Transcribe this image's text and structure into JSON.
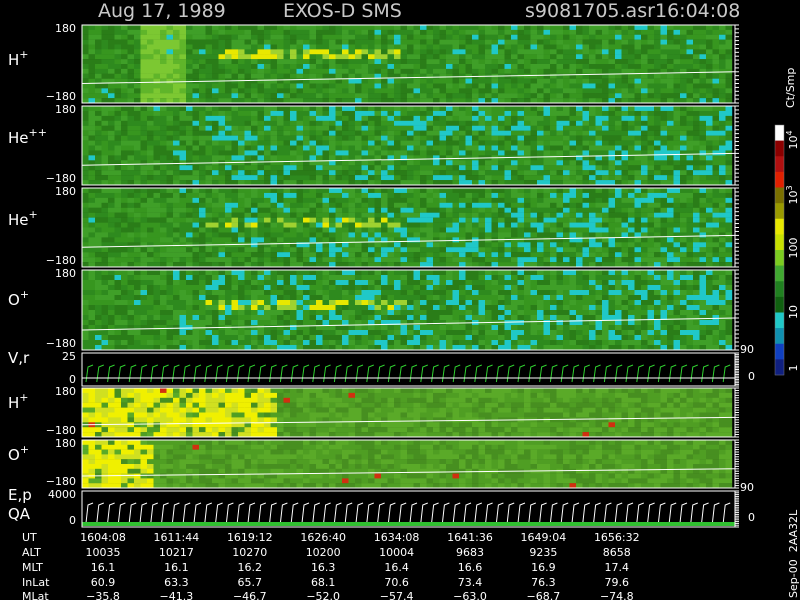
{
  "header": {
    "title": "Aug 17, 1989",
    "instrument": "EXOS-D SMS",
    "file": "s9081705.asr",
    "time": "16:04:08"
  },
  "panels": [
    {
      "label": "H",
      "sup": "+",
      "top": "180",
      "bottom": "−180"
    },
    {
      "label": "He",
      "sup": "++",
      "top": "180",
      "bottom": "−180"
    },
    {
      "label": "He",
      "sup": "+",
      "top": "180",
      "bottom": "−180"
    },
    {
      "label": "O",
      "sup": "+",
      "top": "180",
      "bottom": "−180"
    },
    {
      "label": "V,r",
      "top": "25",
      "bottom": "0",
      "right_top": "90",
      "right_bottom": "0"
    },
    {
      "label": "H",
      "sup": "+",
      "top": "180",
      "bottom": "−180"
    },
    {
      "label": "O",
      "sup": "+",
      "top": "180",
      "bottom": "−180"
    },
    {
      "label": "E,p",
      "label2": "QA",
      "top": "4000",
      "bottom": "0",
      "right_top": "90",
      "right_bottom": "0"
    }
  ],
  "colorbar": {
    "unit": "Ct/Smp",
    "labels": [
      {
        "base": "10",
        "exp": "4"
      },
      {
        "base": "10",
        "exp": "3"
      },
      {
        "base": "100"
      },
      {
        "base": "10"
      },
      {
        "base": "1"
      }
    ]
  },
  "footer": {
    "rows": [
      {
        "label": "UT",
        "cells": [
          "1604:08",
          "1611:44",
          "1619:12",
          "1626:40",
          "1634:08",
          "1641:36",
          "1649:04",
          "1656:32"
        ]
      },
      {
        "label": "ALT",
        "cells": [
          "10035",
          "10217",
          "10270",
          "10200",
          "10004",
          "9683",
          "9235",
          "8658"
        ]
      },
      {
        "label": "MLT",
        "cells": [
          "16.1",
          "16.1",
          "16.2",
          "16.3",
          "16.4",
          "16.6",
          "16.9",
          "17.4"
        ]
      },
      {
        "label": "InLat",
        "cells": [
          "60.9",
          "63.3",
          "65.7",
          "68.1",
          "70.6",
          "73.4",
          "76.3",
          "79.6"
        ]
      },
      {
        "label": "MLat",
        "cells": [
          "−35.8",
          "−41.3",
          "−46.7",
          "−52.0",
          "−57.4",
          "−63.0",
          "−68.7",
          "−74.8"
        ]
      }
    ]
  },
  "stamp": "Sep-00  2AA32L"
}
